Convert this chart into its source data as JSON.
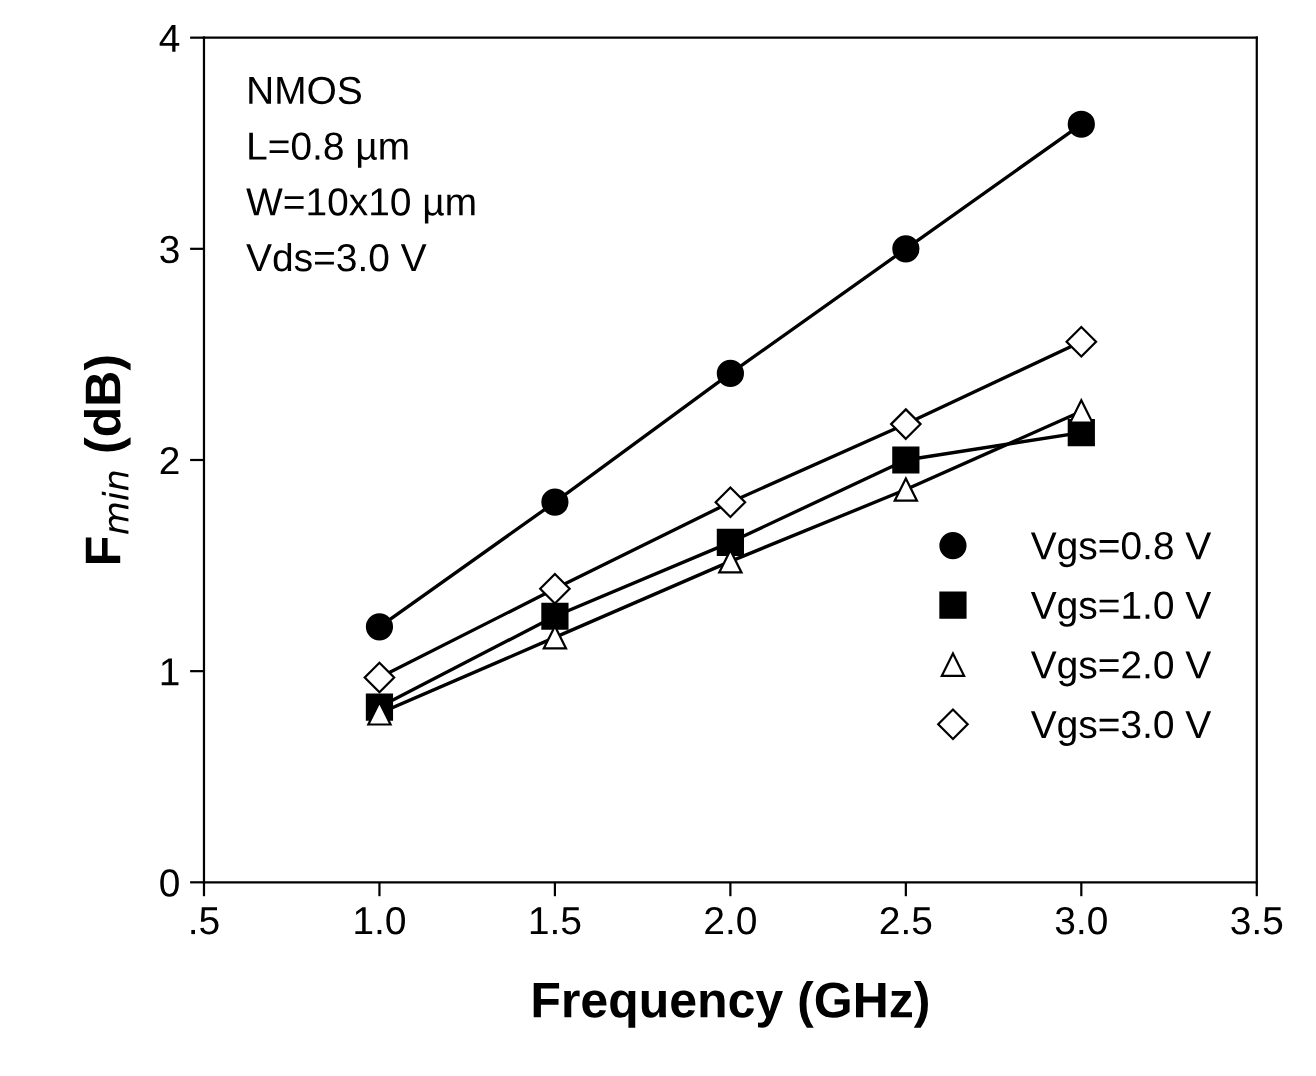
{
  "chart_data": {
    "type": "line",
    "xlabel": "Frequency (GHz)",
    "ylabel": "F$_{min}$ (dB)",
    "annotations": [
      "NMOS",
      "L=0.8 µm",
      "W=10x10 µm",
      "Vds=3.0 V"
    ],
    "x": [
      1.0,
      1.5,
      2.0,
      2.5,
      3.0
    ],
    "xlim": [
      0.5,
      3.5
    ],
    "xticks": [
      {
        "value": 0.5,
        "label": ".5"
      },
      {
        "value": 1.0,
        "label": "1.0"
      },
      {
        "value": 1.5,
        "label": "1.5"
      },
      {
        "value": 2.0,
        "label": "2.0"
      },
      {
        "value": 2.5,
        "label": "2.5"
      },
      {
        "value": 3.0,
        "label": "3.0"
      },
      {
        "value": 3.5,
        "label": "3.5"
      }
    ],
    "ylim": [
      0,
      4
    ],
    "yticks": [
      0,
      1,
      2,
      3,
      4
    ],
    "grid": false,
    "legend": "bottom right",
    "line_style": "solid",
    "series": [
      {
        "name": "Vgs=0.8 V",
        "color": "#000000",
        "marker": "circle",
        "values": [
          1.21,
          1.8,
          2.41,
          3.0,
          3.59
        ]
      },
      {
        "name": "Vgs=1.0 V",
        "color": "#000000",
        "marker": "square",
        "values": [
          0.83,
          1.26,
          1.61,
          2.0,
          2.13
        ]
      },
      {
        "name": "Vgs=2.0 V",
        "color": "#000000",
        "marker": "triangle",
        "values": [
          0.8,
          1.16,
          1.52,
          1.86,
          2.23
        ]
      },
      {
        "name": "Vgs=3.0 V",
        "color": "#000000",
        "marker": "diamond",
        "values": [
          0.97,
          1.39,
          1.8,
          2.17,
          2.56
        ]
      }
    ]
  }
}
